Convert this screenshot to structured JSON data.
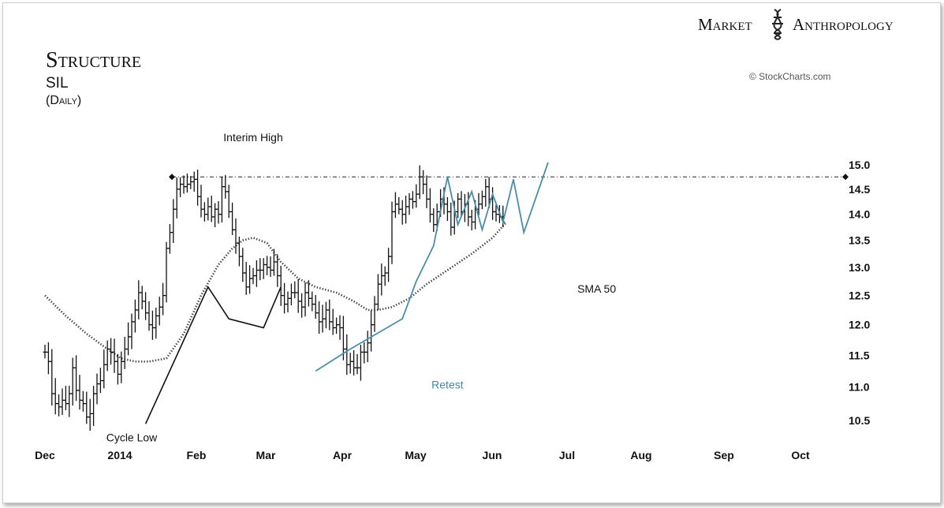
{
  "brand": {
    "word1": "Market",
    "word2": "Anthropology"
  },
  "source": "© StockCharts.com",
  "chart_data": {
    "type": "bar",
    "title": "Structure",
    "subtitle": "SIL",
    "interval": "(Daily)",
    "ylim": [
      10.3,
      15.15
    ],
    "yticks": [
      10.5,
      11.0,
      11.5,
      12.0,
      12.5,
      13.0,
      13.5,
      14.0,
      14.5,
      15.0
    ],
    "xticks": [
      "Dec",
      "2014",
      "Feb",
      "Mar",
      "Apr",
      "May",
      "Jun",
      "Jul",
      "Aug",
      "Sep",
      "Oct"
    ],
    "resistance_level": 14.75,
    "ohlc_series": {
      "name": "SIL",
      "x": [
        0,
        2,
        4,
        6,
        8,
        10,
        12,
        14,
        16,
        18,
        20,
        22,
        24,
        26,
        28,
        30,
        32,
        34,
        36,
        38,
        40,
        42,
        44,
        46,
        48,
        50,
        52,
        54,
        56,
        58,
        60,
        62,
        64,
        66,
        68,
        70,
        72,
        74,
        76,
        78,
        80,
        82,
        84,
        86,
        88,
        90,
        92,
        94,
        96,
        98,
        100,
        102,
        104,
        106,
        108,
        110,
        112,
        114,
        116,
        118,
        120,
        122,
        124,
        126,
        128,
        130,
        132,
        134,
        136,
        138,
        140,
        142,
        144,
        146,
        148,
        150,
        152,
        154,
        156,
        158,
        160,
        162,
        164,
        166,
        168,
        170,
        172,
        174,
        176,
        178,
        180,
        182,
        184,
        186,
        188,
        190,
        192,
        194,
        196,
        198,
        200,
        202,
        204,
        206,
        208,
        210,
        212,
        214,
        216,
        218,
        220,
        222,
        224,
        226,
        228,
        230,
        232,
        234,
        236,
        238,
        240,
        242,
        244,
        246,
        248,
        250,
        252,
        254,
        256,
        258,
        260,
        262,
        264
      ],
      "close": [
        11.55,
        11.4,
        10.9,
        10.75,
        10.7,
        10.8,
        10.75,
        10.9,
        11.3,
        10.95,
        10.8,
        10.75,
        10.55,
        10.6,
        10.9,
        11.05,
        11.1,
        11.35,
        11.6,
        11.55,
        11.4,
        11.2,
        11.4,
        11.6,
        11.8,
        12.05,
        12.25,
        12.55,
        12.4,
        12.2,
        12.0,
        11.95,
        12.15,
        12.3,
        12.5,
        13.35,
        13.65,
        14.1,
        14.5,
        14.6,
        14.55,
        14.6,
        14.65,
        14.7,
        14.35,
        14.1,
        14.0,
        14.15,
        13.95,
        14.1,
        14.0,
        14.55,
        14.45,
        14.05,
        13.7,
        13.45,
        13.2,
        12.9,
        12.65,
        12.8,
        12.85,
        12.95,
        12.95,
        13.05,
        13.0,
        12.95,
        13.1,
        12.85,
        12.5,
        12.35,
        12.45,
        12.55,
        12.55,
        12.4,
        12.3,
        12.55,
        12.45,
        12.35,
        12.2,
        12.05,
        12.1,
        12.25,
        12.05,
        11.95,
        12.0,
        11.95,
        11.6,
        11.35,
        11.4,
        11.3,
        11.3,
        11.55,
        11.55,
        11.7,
        12.0,
        12.35,
        12.7,
        12.85,
        12.9,
        13.2,
        14.05,
        14.2,
        14.1,
        14.0,
        14.15,
        14.3,
        14.25,
        14.4,
        14.75,
        14.6,
        14.3,
        14.0,
        13.8,
        14.05,
        14.3,
        14.2,
        14.05,
        13.75,
        14.05,
        14.3,
        14.05,
        14.2,
        13.95,
        13.85,
        14.1,
        14.2,
        14.35,
        14.55,
        14.3,
        14.05,
        14.0,
        13.95,
        13.85
      ],
      "drawn_as": "daily OHLC bars"
    },
    "sma50": {
      "name": "SMA 50",
      "x": [
        0,
        12,
        24,
        36,
        44,
        52,
        60,
        70,
        80,
        90,
        100,
        108,
        114,
        120,
        128,
        136,
        146,
        156,
        168,
        178,
        186,
        192,
        200,
        210,
        220,
        232,
        246,
        258,
        266
      ],
      "values": [
        12.5,
        12.15,
        11.85,
        11.6,
        11.45,
        11.4,
        11.4,
        11.45,
        11.85,
        12.5,
        13.05,
        13.35,
        13.5,
        13.55,
        13.45,
        13.1,
        12.8,
        12.65,
        12.55,
        12.4,
        12.25,
        12.25,
        12.3,
        12.45,
        12.7,
        12.95,
        13.25,
        13.55,
        13.85
      ]
    },
    "pattern_black": {
      "x": [
        58,
        94,
        106,
        126,
        136
      ],
      "values": [
        10.45,
        12.65,
        12.1,
        11.95,
        12.65
      ]
    },
    "pattern_blue": {
      "x": [
        156,
        176,
        206,
        214,
        224,
        232,
        238,
        246,
        252,
        258,
        264,
        270,
        276,
        290
      ],
      "values": [
        11.25,
        11.6,
        12.1,
        12.75,
        13.4,
        14.75,
        13.8,
        14.45,
        13.7,
        14.4,
        13.85,
        14.7,
        13.65,
        15.05
      ]
    },
    "annotations": [
      {
        "text": "Interim High",
        "x": 120,
        "y": 15.5
      },
      {
        "text": "Cycle Low",
        "x": 50,
        "y": 10.2
      },
      {
        "text": "Retest",
        "x": 232,
        "y": 10.98
      },
      {
        "text": "SMA 50",
        "x": 318,
        "y": 12.55
      }
    ]
  }
}
